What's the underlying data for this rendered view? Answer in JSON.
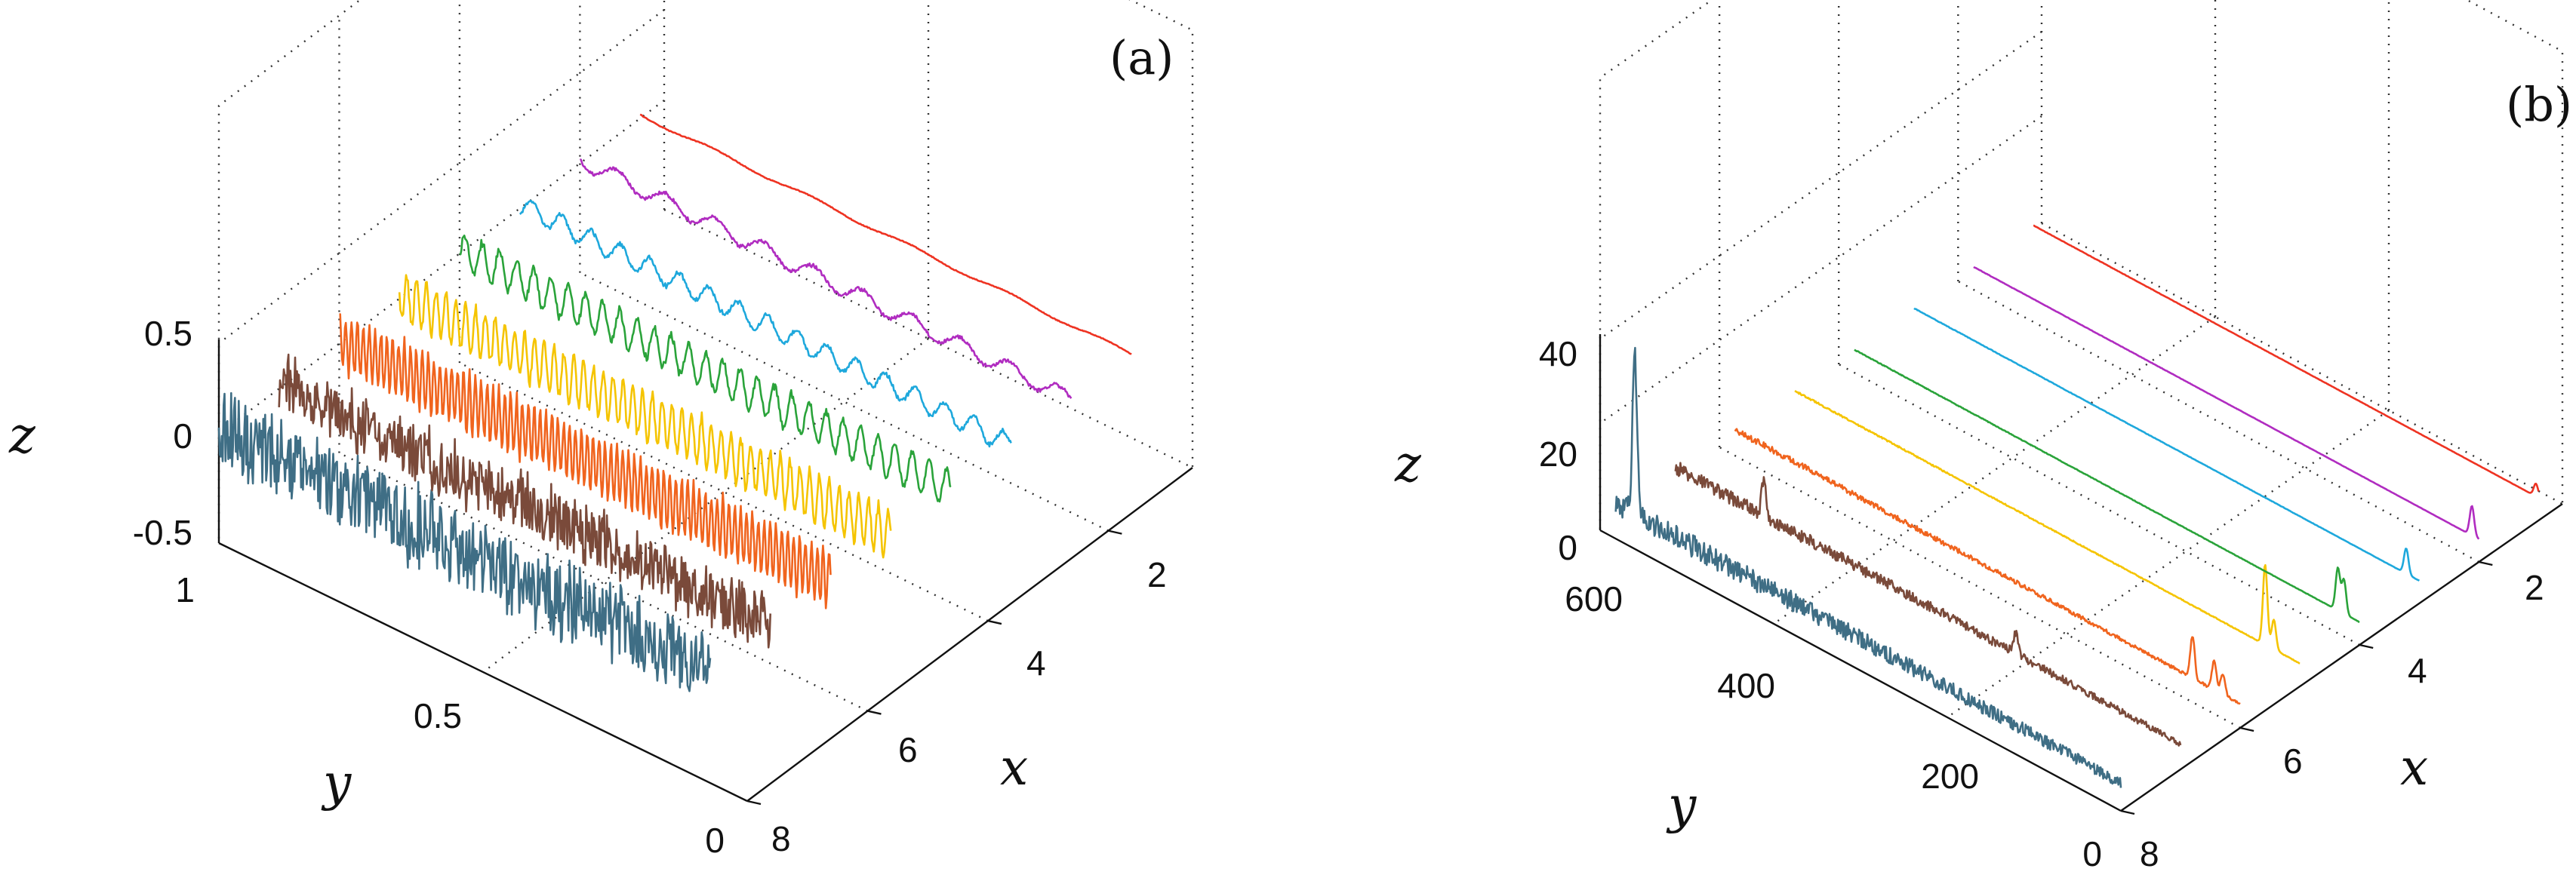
{
  "colors": [
    "#3f6e85",
    "#7a4a3a",
    "#f0641e",
    "#f5c400",
    "#2aa33a",
    "#1ea8dc",
    "#b02cc0",
    "#ee3322"
  ],
  "chart_data": [
    {
      "panel": "(a)",
      "type": "line",
      "view": "3d-waterfall",
      "xlabel": "x",
      "ylabel": "y",
      "zlabel": "z",
      "x_ticks": [
        "2",
        "4",
        "6",
        "8"
      ],
      "y_ticks": [
        "0",
        "0.5",
        "1"
      ],
      "z_ticks": [
        "-0.5",
        "0",
        "0.5"
      ],
      "x_range": [
        1,
        8
      ],
      "y_range": [
        0,
        1
      ],
      "z_range": [
        -0.5,
        0.5
      ],
      "grid": true,
      "series": [
        {
          "x": 8,
          "amplitude": 0.22,
          "oscillation_period": null
        },
        {
          "x": 7,
          "amplitude": 0.17,
          "oscillation_period": null
        },
        {
          "x": 6,
          "amplitude": 0.14,
          "oscillation_period": 0.012
        },
        {
          "x": 5,
          "amplitude": 0.12,
          "oscillation_period": 0.02
        },
        {
          "x": 4,
          "amplitude": 0.09,
          "oscillation_period": 0.035
        },
        {
          "x": 3,
          "amplitude": 0.05,
          "oscillation_period": 0.06
        },
        {
          "x": 2,
          "amplitude": 0.04,
          "oscillation_period": 0.1
        },
        {
          "x": 1,
          "amplitude": 0.01,
          "oscillation_period": 0.2
        }
      ]
    },
    {
      "panel": "(b)",
      "type": "line",
      "view": "3d-waterfall",
      "xlabel": "x",
      "ylabel": "y",
      "zlabel": "z",
      "x_ticks": [
        "2",
        "4",
        "6",
        "8"
      ],
      "y_ticks": [
        "0",
        "200",
        "400",
        "600"
      ],
      "z_ticks": [
        "0",
        "20",
        "40"
      ],
      "x_range": [
        1,
        8
      ],
      "y_range": [
        0,
        600
      ],
      "z_range": [
        0,
        40
      ],
      "grid": true,
      "series": [
        {
          "x": 8,
          "peaks": [
            {
              "y": 560,
              "z": 38
            }
          ],
          "noise": 6
        },
        {
          "x": 7,
          "peaks": [
            {
              "y": 480,
              "z": 9
            },
            {
              "y": 190,
              "z": 5
            }
          ],
          "noise": 3.5
        },
        {
          "x": 6,
          "peaks": [
            {
              "y": 55,
              "z": 10
            },
            {
              "y": 30,
              "z": 7
            },
            {
              "y": 20,
              "z": 5
            }
          ],
          "noise": 1.6
        },
        {
          "x": 5,
          "peaks": [
            {
              "y": 40,
              "z": 19
            },
            {
              "y": 30,
              "z": 7
            }
          ],
          "noise": 0.4
        },
        {
          "x": 4,
          "peaks": [
            {
              "y": 25,
              "z": 10
            },
            {
              "y": 18,
              "z": 8
            }
          ],
          "noise": 0.2
        },
        {
          "x": 3,
          "peaks": [
            {
              "y": 15,
              "z": 6
            }
          ],
          "noise": 0.15
        },
        {
          "x": 2,
          "peaks": [
            {
              "y": 8,
              "z": 7
            }
          ],
          "noise": 0.1
        },
        {
          "x": 1,
          "peaks": [
            {
              "y": 3,
              "z": 3
            }
          ],
          "noise": 0.1
        }
      ]
    }
  ]
}
